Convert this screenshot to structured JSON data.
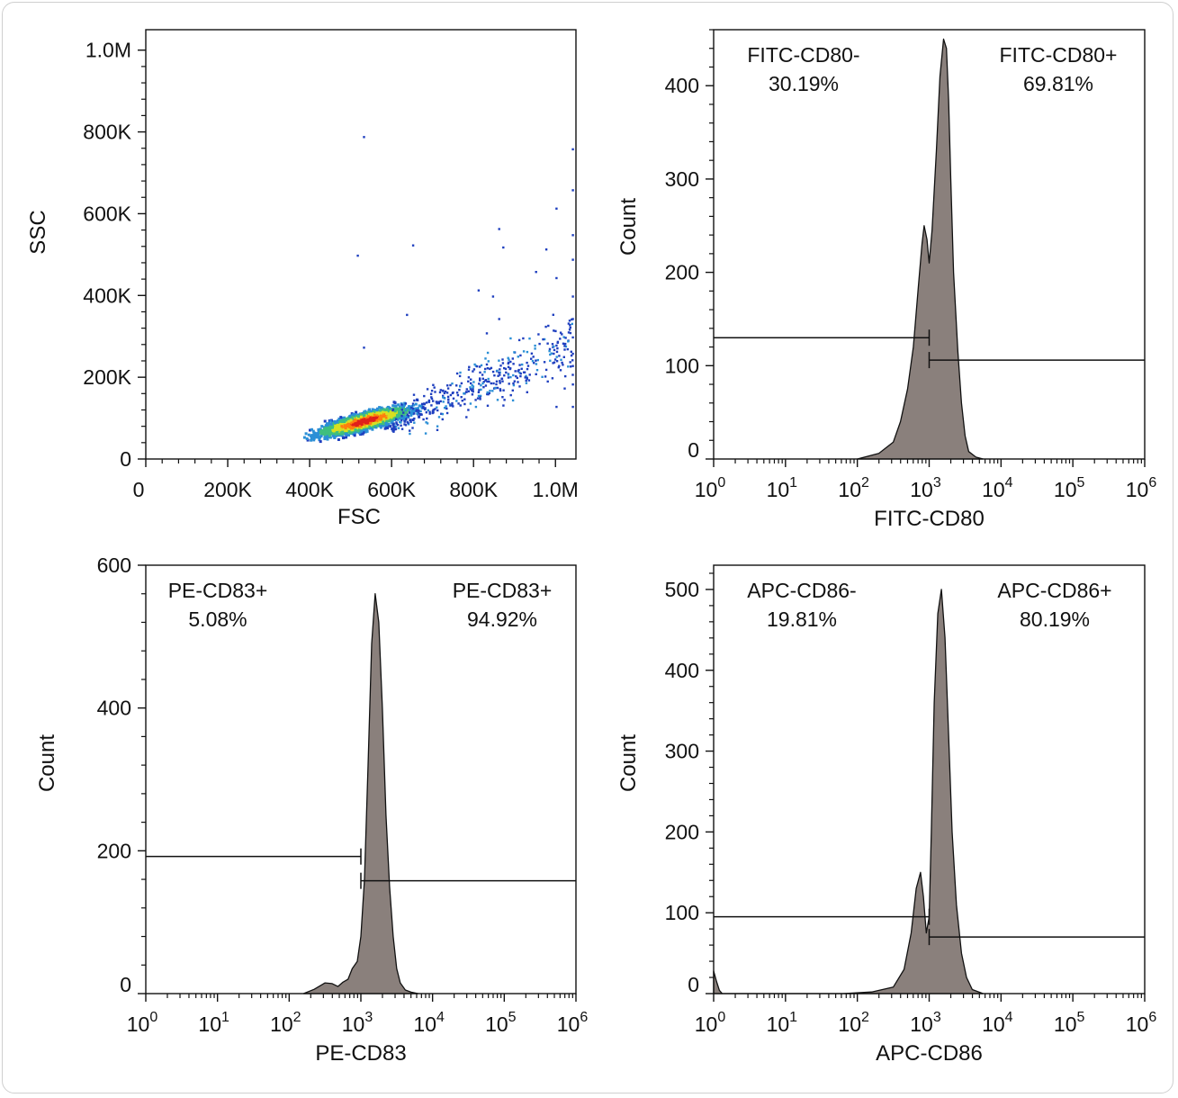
{
  "chart_data": [
    {
      "type": "scatter",
      "subtype": "density-dot-plot",
      "title": "",
      "xlabel": "FSC",
      "ylabel": "SSC",
      "xlim": [
        0,
        1050000
      ],
      "ylim": [
        0,
        1050000
      ],
      "xticks": [
        0,
        200000,
        400000,
        600000,
        800000,
        1000000
      ],
      "xtick_labels": [
        "0",
        "200K",
        "400K",
        "600K",
        "800K",
        "1.0M"
      ],
      "yticks": [
        0,
        200000,
        400000,
        600000,
        800000,
        1000000
      ],
      "ytick_labels": [
        "0",
        "200K",
        "400K",
        "600K",
        "800K",
        "1.0M"
      ],
      "population": {
        "center_fsc": 530000,
        "center_ssc": 95000,
        "color_scale": [
          "#1f3fbf",
          "#2b8fd6",
          "#3fbf7f",
          "#d8e021",
          "#ff7f0e",
          "#e0201b"
        ]
      },
      "outliers": [
        [
          530000,
          790000
        ],
        [
          1040000,
          760000
        ],
        [
          1040000,
          660000
        ],
        [
          1000000,
          615000
        ],
        [
          860000,
          565000
        ],
        [
          1040000,
          550000
        ],
        [
          870000,
          520000
        ],
        [
          975000,
          515000
        ],
        [
          650000,
          525000
        ],
        [
          515000,
          500000
        ],
        [
          950000,
          460000
        ],
        [
          1040000,
          490000
        ],
        [
          810000,
          415000
        ],
        [
          1040000,
          400000
        ],
        [
          845000,
          400000
        ],
        [
          1000000,
          445000
        ],
        [
          635000,
          355000
        ],
        [
          1040000,
          345000
        ],
        [
          860000,
          345000
        ],
        [
          1040000,
          300000
        ],
        [
          530000,
          275000
        ],
        [
          1000000,
          280000
        ],
        [
          1020000,
          270000
        ],
        [
          1040000,
          260000
        ],
        [
          830000,
          310000
        ],
        [
          1040000,
          230000
        ],
        [
          1010000,
          220000
        ],
        [
          990000,
          200000
        ],
        [
          1040000,
          185000
        ],
        [
          910000,
          180000
        ],
        [
          950000,
          210000
        ],
        [
          1020000,
          175000
        ],
        [
          1000000,
          130000
        ],
        [
          1040000,
          130000
        ],
        [
          780000,
          105000
        ]
      ]
    },
    {
      "type": "area",
      "subtype": "histogram",
      "xlabel": "FITC-CD80",
      "ylabel": "Count",
      "xscale": "log",
      "xlim": [
        1,
        1000000
      ],
      "ylim": [
        0,
        460
      ],
      "yticks": [
        0,
        100,
        200,
        300,
        400
      ],
      "xtick_exponents": [
        0,
        1,
        2,
        3,
        4,
        5,
        6
      ],
      "xtick_base": "10",
      "x_log10": [
        2.0,
        2.3,
        2.5,
        2.6,
        2.7,
        2.78,
        2.85,
        2.9,
        2.93,
        2.97,
        3.0,
        3.04,
        3.1,
        3.15,
        3.2,
        3.24,
        3.27,
        3.3,
        3.34,
        3.4,
        3.45,
        3.5,
        3.55,
        3.65,
        3.75
      ],
      "counts": [
        0,
        6,
        18,
        40,
        75,
        120,
        185,
        230,
        250,
        235,
        210,
        245,
        330,
        410,
        450,
        440,
        385,
        300,
        200,
        115,
        60,
        25,
        8,
        2,
        0
      ],
      "gates": [
        {
          "name": "FITC-CD80-",
          "percent": "30.19%",
          "x_range_log10": [
            0,
            3.0
          ],
          "y": 130
        },
        {
          "name": "FITC-CD80+",
          "percent": "69.81%",
          "x_range_log10": [
            3.0,
            6.0
          ],
          "y": 106
        }
      ]
    },
    {
      "type": "area",
      "subtype": "histogram",
      "xlabel": "PE-CD83",
      "ylabel": "Count",
      "xscale": "log",
      "xlim": [
        1,
        1000000
      ],
      "ylim": [
        0,
        600
      ],
      "yticks": [
        0,
        200,
        400,
        600
      ],
      "xtick_exponents": [
        0,
        1,
        2,
        3,
        4,
        5,
        6
      ],
      "xtick_base": "10",
      "x_log10": [
        2.2,
        2.35,
        2.5,
        2.6,
        2.68,
        2.75,
        2.82,
        2.88,
        2.95,
        3.0,
        3.05,
        3.1,
        3.15,
        3.2,
        3.25,
        3.3,
        3.35,
        3.4,
        3.45,
        3.5,
        3.55,
        3.62,
        3.7,
        3.8
      ],
      "counts": [
        0,
        6,
        15,
        14,
        10,
        16,
        20,
        35,
        45,
        80,
        160,
        320,
        490,
        560,
        520,
        400,
        250,
        150,
        80,
        35,
        15,
        5,
        2,
        0
      ],
      "gates": [
        {
          "name": "PE-CD83+",
          "percent": "5.08%",
          "x_range_log10": [
            0,
            3.0
          ],
          "y": 192
        },
        {
          "name": "PE-CD83+",
          "percent": "94.92%",
          "x_range_log10": [
            3.0,
            6.0
          ],
          "y": 158
        }
      ]
    },
    {
      "type": "area",
      "subtype": "histogram",
      "xlabel": "APC-CD86",
      "ylabel": "Count",
      "xscale": "log",
      "xlim": [
        1,
        1000000
      ],
      "ylim": [
        0,
        530
      ],
      "yticks": [
        0,
        100,
        200,
        300,
        400,
        500
      ],
      "xtick_exponents": [
        0,
        1,
        2,
        3,
        4,
        5,
        6
      ],
      "xtick_base": "10",
      "x_log10": [
        0.0,
        0.04,
        0.08,
        0.12,
        1.8,
        2.2,
        2.5,
        2.65,
        2.75,
        2.82,
        2.88,
        2.92,
        2.96,
        3.0,
        3.03,
        3.07,
        3.12,
        3.17,
        3.22,
        3.27,
        3.32,
        3.38,
        3.45,
        3.52,
        3.6,
        3.75
      ],
      "counts": [
        28,
        15,
        4,
        0,
        0,
        2,
        8,
        30,
        75,
        130,
        150,
        120,
        75,
        95,
        200,
        360,
        470,
        500,
        440,
        320,
        200,
        110,
        50,
        20,
        5,
        0
      ],
      "gates": [
        {
          "name": "APC-CD86-",
          "percent": "19.81%",
          "x_range_log10": [
            0,
            3.0
          ],
          "y": 95
        },
        {
          "name": "APC-CD86+",
          "percent": "80.19%",
          "x_range_log10": [
            3.0,
            6.0
          ],
          "y": 70
        }
      ]
    }
  ]
}
